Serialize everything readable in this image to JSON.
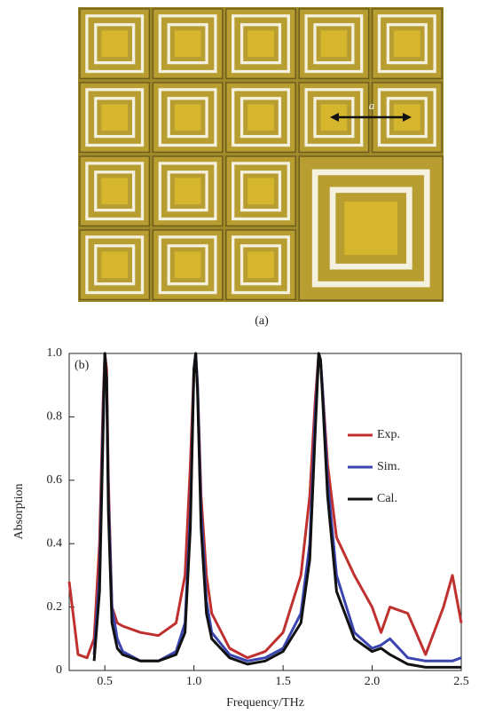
{
  "figure_a": {
    "caption": "(a)",
    "annotation": "a"
  },
  "chart_data": {
    "type": "line",
    "panel_label": "(b)",
    "x_label": "Frequency/THz",
    "y_label": "Absorption",
    "x": [
      0.3,
      0.35,
      0.4,
      0.44,
      0.47,
      0.49,
      0.5,
      0.51,
      0.52,
      0.54,
      0.57,
      0.6,
      0.7,
      0.8,
      0.9,
      0.95,
      0.98,
      1.0,
      1.01,
      1.02,
      1.04,
      1.07,
      1.1,
      1.2,
      1.3,
      1.4,
      1.5,
      1.6,
      1.65,
      1.68,
      1.7,
      1.71,
      1.72,
      1.75,
      1.8,
      1.9,
      2.0,
      2.05,
      2.1,
      2.2,
      2.3,
      2.4,
      2.45,
      2.5
    ],
    "series": [
      {
        "name": "Exp.",
        "color": "#c0302f",
        "values": [
          0.28,
          0.05,
          0.04,
          0.1,
          0.4,
          0.85,
          1.0,
          0.95,
          0.6,
          0.2,
          0.15,
          0.14,
          0.12,
          0.11,
          0.15,
          0.3,
          0.65,
          0.95,
          1.0,
          0.9,
          0.55,
          0.3,
          0.18,
          0.07,
          0.04,
          0.06,
          0.12,
          0.3,
          0.55,
          0.85,
          1.0,
          0.98,
          0.9,
          0.65,
          0.42,
          0.3,
          0.2,
          0.12,
          0.2,
          0.18,
          0.05,
          0.2,
          0.3,
          0.15
        ]
      },
      {
        "name": "Sim.",
        "color": "#3a45b0",
        "values": [
          null,
          null,
          null,
          0.05,
          0.3,
          0.8,
          1.0,
          0.9,
          0.55,
          0.2,
          0.1,
          0.06,
          0.03,
          0.03,
          0.06,
          0.15,
          0.5,
          0.95,
          1.0,
          0.9,
          0.5,
          0.22,
          0.12,
          0.05,
          0.03,
          0.04,
          0.07,
          0.18,
          0.4,
          0.8,
          1.0,
          0.98,
          0.9,
          0.6,
          0.3,
          0.12,
          0.07,
          0.08,
          0.1,
          0.04,
          0.03,
          0.03,
          0.03,
          0.04
        ]
      },
      {
        "name": "Cal.",
        "color": "#111111",
        "values": [
          null,
          null,
          null,
          0.03,
          0.25,
          0.75,
          1.0,
          0.92,
          0.5,
          0.15,
          0.07,
          0.05,
          0.03,
          0.03,
          0.05,
          0.12,
          0.45,
          0.95,
          1.0,
          0.88,
          0.45,
          0.18,
          0.1,
          0.04,
          0.02,
          0.03,
          0.06,
          0.15,
          0.35,
          0.75,
          1.0,
          0.98,
          0.88,
          0.55,
          0.25,
          0.1,
          0.06,
          0.07,
          0.05,
          0.02,
          0.01,
          0.01,
          0.01,
          0.01
        ]
      }
    ],
    "xlim": [
      0.3,
      2.5
    ],
    "ylim": [
      0,
      1.0
    ],
    "xticks": [
      0.5,
      {
        "value": 1.0,
        "label": "1.0"
      },
      1.5,
      {
        "value": 2.0,
        "label": "2.0"
      },
      2.5
    ],
    "yticks": [
      0,
      0.2,
      0.4,
      0.6,
      0.8,
      {
        "value": 1.0,
        "label": "1.0"
      }
    ],
    "legend": "upper right"
  }
}
